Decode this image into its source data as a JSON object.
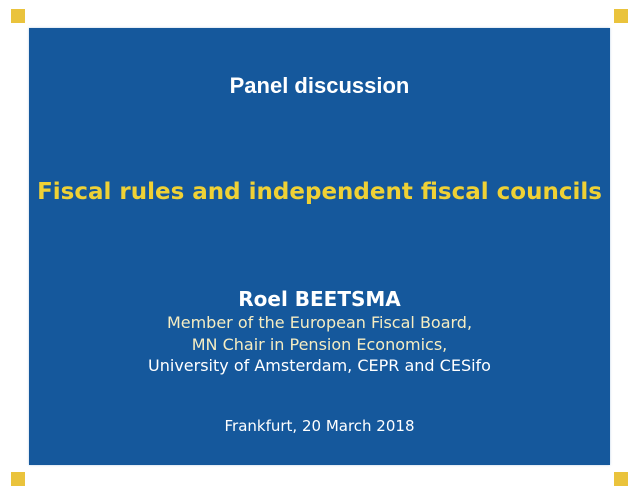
{
  "slide": {
    "header": "Panel discussion",
    "title": "Fiscal rules and independent fiscal councils",
    "author": "Roel BEETSMA",
    "affiliations": [
      "Member of the European Fiscal Board,",
      "MN Chair in Pension Economics,",
      "University of Amsterdam, CEPR and CESifo"
    ],
    "footer": "Frankfurt, 20 March 2018",
    "colors": {
      "background": "#15589C",
      "title_yellow": "#EFD135",
      "affiliation_cream": "#F6EDC2",
      "text_white": "#FFFFFF",
      "corner_square": "#EAC33C"
    }
  }
}
